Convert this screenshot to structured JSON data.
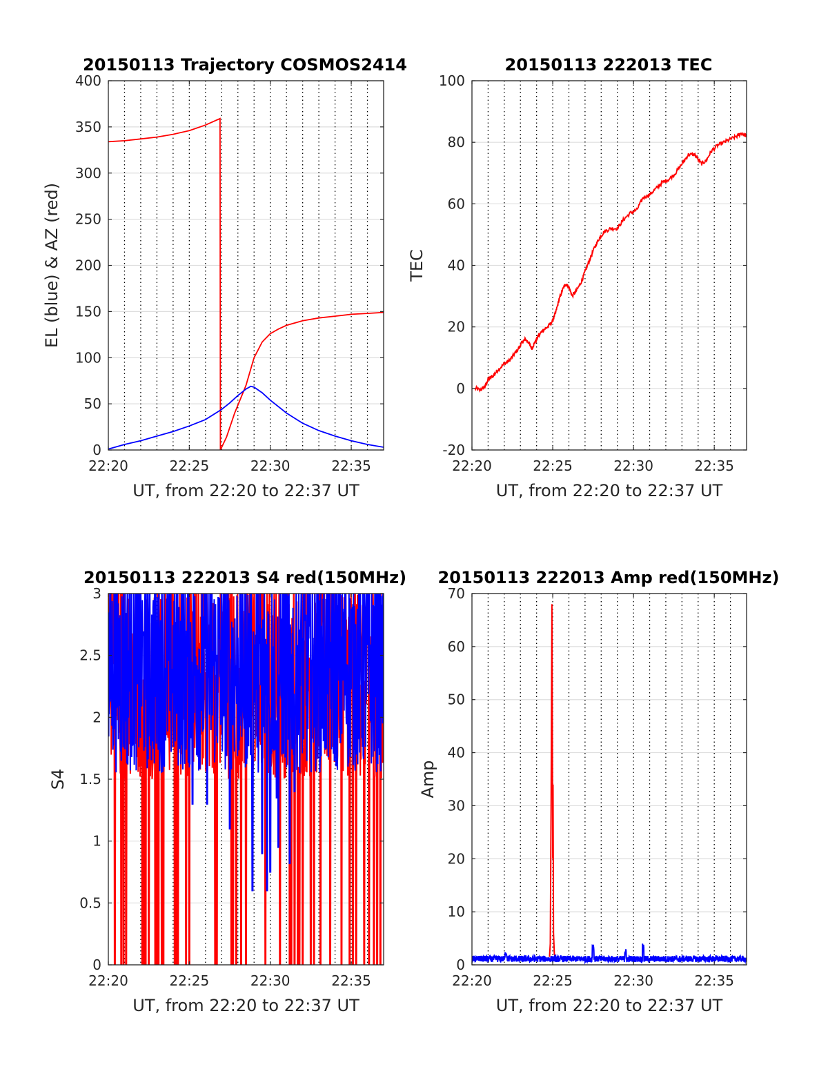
{
  "chart_data": [
    {
      "id": "trajectory",
      "type": "line",
      "title": "20150113 Trajectory COSMOS2414",
      "xlabel": "UT, from 22:20 to 22:37 UT",
      "ylabel": "EL (blue) & AZ (red)",
      "xlim": [
        0,
        17
      ],
      "ylim": [
        0,
        400
      ],
      "xticks": [
        0,
        5,
        10,
        15
      ],
      "xtick_labels": [
        "22:20",
        "22:25",
        "22:30",
        "22:35"
      ],
      "yticks": [
        0,
        50,
        100,
        150,
        200,
        250,
        300,
        350,
        400
      ],
      "ytick_labels": [
        "0",
        "50",
        "100",
        "150",
        "200",
        "250",
        "300",
        "350",
        "400"
      ],
      "grid": true,
      "series": [
        {
          "color": "#ff0000",
          "x": [
            0,
            1,
            2,
            3,
            4,
            5,
            6,
            6.9,
            6.92,
            7.3,
            7.8,
            8.5,
            9,
            9.5,
            10,
            10.5,
            11,
            12,
            13,
            14,
            15,
            16,
            17
          ],
          "y": [
            334,
            335,
            337,
            339,
            342,
            346,
            352,
            359,
            0,
            14,
            40,
            70,
            100,
            117,
            126,
            131,
            135,
            140,
            143,
            145,
            147,
            148,
            149
          ]
        },
        {
          "color": "#0000ff",
          "x": [
            0,
            1,
            2,
            3,
            4,
            5,
            6,
            7,
            7.5,
            8,
            8.5,
            8.8,
            9,
            9.5,
            10,
            11,
            12,
            13,
            14,
            15,
            16,
            17
          ],
          "y": [
            1,
            6,
            10,
            15,
            20,
            26,
            33,
            44,
            51,
            59,
            66,
            69,
            68,
            62,
            54,
            40,
            29,
            21,
            15,
            10,
            6,
            3
          ]
        }
      ]
    },
    {
      "id": "tec",
      "type": "line",
      "title": "20150113 222013 TEC",
      "xlabel": "UT, from 22:20 to 22:37 UT",
      "ylabel": "TEC",
      "xlim": [
        0,
        17
      ],
      "ylim": [
        -20,
        100
      ],
      "xticks": [
        0,
        5,
        10,
        15
      ],
      "xtick_labels": [
        "22:20",
        "22:25",
        "22:30",
        "22:35"
      ],
      "yticks": [
        -20,
        0,
        20,
        40,
        60,
        80,
        100
      ],
      "ytick_labels": [
        "-20",
        "0",
        "20",
        "40",
        "60",
        "80",
        "100"
      ],
      "grid": true,
      "series": [
        {
          "color": "#ff0000",
          "x": [
            0.2,
            0.5,
            0.8,
            1.0,
            1.3,
            1.6,
            2,
            2.3,
            2.6,
            2.9,
            3.1,
            3.3,
            3.5,
            3.7,
            3.9,
            4.1,
            4.4,
            4.7,
            5.0,
            5.2,
            5.4,
            5.6,
            5.8,
            6.0,
            6.2,
            6.5,
            6.8,
            7.0,
            7.3,
            7.6,
            7.9,
            8.2,
            8.6,
            9.0,
            9.4,
            9.8,
            10.2,
            10.6,
            11.0,
            11.4,
            11.8,
            12.2,
            12.6,
            13.0,
            13.4,
            13.8,
            14.2,
            14.5,
            14.8,
            15.2,
            15.6,
            16.0,
            16.4,
            16.7,
            17.0
          ],
          "y": [
            0,
            -0.5,
            0.5,
            3,
            4,
            6,
            8,
            9,
            11,
            13,
            15,
            16,
            15,
            13,
            15,
            17,
            19,
            20,
            22,
            25,
            29,
            32,
            34,
            33,
            30,
            32,
            35,
            38,
            42,
            46,
            49,
            51,
            52,
            52,
            55,
            57,
            58,
            62,
            63,
            65,
            67,
            68,
            70,
            73,
            76,
            76,
            73,
            74,
            77,
            79,
            80,
            81,
            82,
            83,
            82
          ]
        }
      ]
    },
    {
      "id": "s4",
      "type": "line",
      "title": "20150113 222013 S4 red(150MHz)",
      "xlabel": "UT, from 22:20 to 22:37 UT",
      "ylabel": "S4",
      "xlim": [
        0,
        17
      ],
      "ylim": [
        0,
        3
      ],
      "xticks": [
        0,
        5,
        10,
        15
      ],
      "xtick_labels": [
        "22:20",
        "22:25",
        "22:30",
        "22:35"
      ],
      "yticks": [
        0,
        0.5,
        1,
        1.5,
        2,
        2.5,
        3
      ],
      "ytick_labels": [
        "0",
        "0.5",
        "1",
        "1.5",
        "2",
        "2.5",
        "3"
      ],
      "grid": true,
      "series": [
        {
          "color": "#ff0000",
          "noise": {
            "floor": 1.5,
            "ceiling": 3,
            "dropout_to": 0,
            "dropout_times": [
              0.4,
              0.8,
              0.95,
              1.1,
              2.1,
              2.2,
              2.3,
              2.5,
              2.9,
              3.0,
              3.1,
              3.3,
              3.4,
              4.1,
              4.2,
              4.3,
              4.8,
              5.0,
              6.6,
              6.7,
              7.6,
              7.7,
              7.9,
              8.2,
              8.5,
              9.7,
              10.6,
              11.2,
              11.3,
              11.5,
              11.7,
              11.8,
              12.0,
              12.5,
              12.7,
              13.1,
              13.7,
              14.4,
              14.9,
              15.1,
              15.3,
              15.8,
              16.1,
              16.4,
              16.6,
              16.8
            ]
          }
        }
      ]
    },
    {
      "id": "amp",
      "type": "line",
      "title": "20150113 222013 Amp red(150MHz)",
      "xlabel": "UT, from 22:20 to 22:37 UT",
      "ylabel": "Amp",
      "xlim": [
        0,
        17
      ],
      "ylim": [
        0,
        70
      ],
      "xticks": [
        0,
        5,
        10,
        15
      ],
      "xtick_labels": [
        "22:20",
        "22:25",
        "22:30",
        "22:35"
      ],
      "yticks": [
        0,
        10,
        20,
        30,
        40,
        50,
        60,
        70
      ],
      "ytick_labels": [
        "0",
        "10",
        "20",
        "30",
        "40",
        "50",
        "60",
        "70"
      ],
      "grid": true,
      "series": [
        {
          "color": "#ff0000",
          "x": [
            4.8,
            4.85,
            4.9,
            4.95,
            5.0,
            5.02,
            5.05,
            5.1,
            5.15,
            5.2
          ],
          "y": [
            1.5,
            4,
            30,
            68,
            20,
            34,
            6,
            2,
            1.5,
            1
          ]
        },
        {
          "color": "#0000ff",
          "noise": {
            "level": 1.0,
            "amplitude": 0.6,
            "bumps": [
              {
                "x": 2.1,
                "y": 2.5
              },
              {
                "x": 7.5,
                "y": 4
              },
              {
                "x": 9.5,
                "y": 3
              },
              {
                "x": 10.6,
                "y": 4
              }
            ]
          }
        }
      ]
    }
  ]
}
